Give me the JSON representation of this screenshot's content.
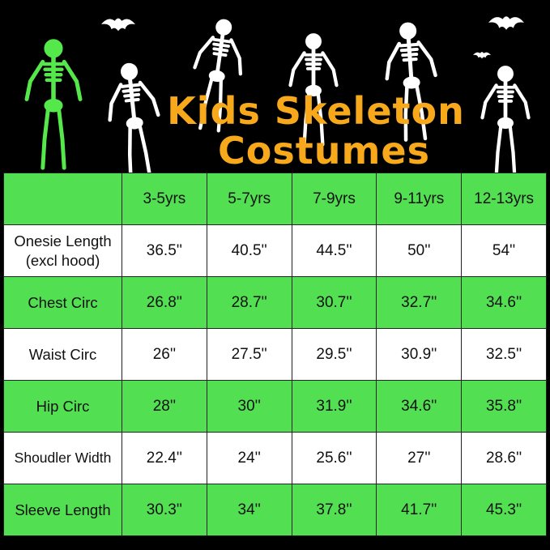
{
  "title": {
    "line1": "Kids Skeleton",
    "line2": "Costumes"
  },
  "colors": {
    "background": "#000000",
    "title": "#f7a91b",
    "green_row": "#52e052",
    "white_row": "#ffffff",
    "glow_skeleton": "#55e84a",
    "skeleton": "#ffffff"
  },
  "illustration": {
    "icons": [
      "glowing-skeleton-icon",
      "dancing-skeleton-icon",
      "bat-icon"
    ]
  },
  "table": {
    "headers": [
      "",
      "3-5yrs",
      "5-7yrs",
      "7-9yrs",
      "9-11yrs",
      "12-13yrs"
    ],
    "rows": [
      {
        "label": "Onesie Length (excl hood)",
        "values": [
          "36.5''",
          "40.5''",
          "44.5''",
          "50''",
          "54''"
        ]
      },
      {
        "label": "Chest Circ",
        "values": [
          "26.8''",
          "28.7''",
          "30.7''",
          "32.7''",
          "34.6''"
        ]
      },
      {
        "label": "Waist Circ",
        "values": [
          "26''",
          "27.5''",
          "29.5''",
          "30.9''",
          "32.5''"
        ]
      },
      {
        "label": "Hip Circ",
        "values": [
          "28''",
          "30''",
          "31.9''",
          "34.6''",
          "35.8''"
        ]
      },
      {
        "label": "Shoudler Width",
        "values": [
          "22.4''",
          "24''",
          "25.6''",
          "27''",
          "28.6''"
        ]
      },
      {
        "label": "Sleeve Length",
        "values": [
          "30.3''",
          "34''",
          "37.8''",
          "41.7''",
          "45.3''"
        ]
      }
    ]
  }
}
